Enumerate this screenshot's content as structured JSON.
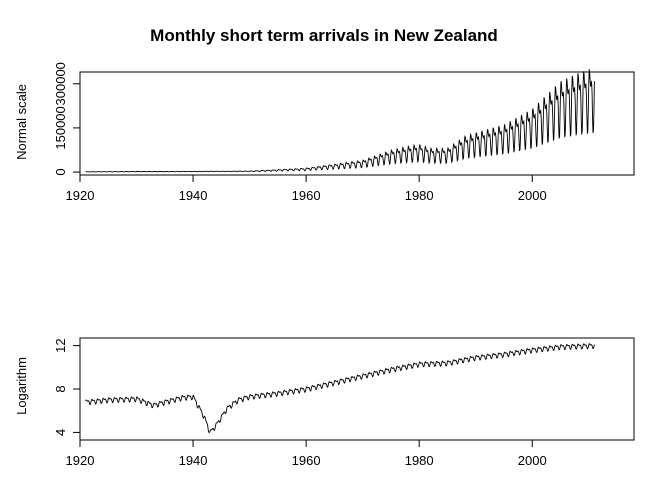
{
  "title": "Monthly short term arrivals in New Zealand",
  "chart_data": [
    {
      "type": "line",
      "panel": "top",
      "ylabel": "Normal scale",
      "xlim": [
        1920,
        2018
      ],
      "ylim": [
        -10000,
        340000
      ],
      "xticks": [
        1920,
        1940,
        1960,
        1980,
        2000
      ],
      "yticks": [
        0,
        150000,
        300000
      ],
      "ytick_labels": [
        "0",
        "150000",
        "300000"
      ],
      "series": [
        {
          "color": "#000000",
          "trend": {
            "x": [
              1921,
              1930,
              1940,
              1950,
              1960,
              1965,
              1970,
              1975,
              1978,
              1980,
              1982,
              1985,
              1988,
              1990,
              1995,
              2000,
              2005,
              2008,
              2011
            ],
            "y": [
              800,
              1500,
              2000,
              2500,
              10000,
              20000,
              30000,
              55000,
              65000,
              70000,
              60000,
              60000,
              90000,
              100000,
              120000,
              160000,
              230000,
              250000,
              265000
            ]
          },
          "seasonal_amplitude_fraction": 0.55
        }
      ]
    },
    {
      "type": "line",
      "panel": "bottom",
      "ylabel": "Logarithm",
      "xlim": [
        1920,
        2018
      ],
      "ylim": [
        3.3,
        12.7
      ],
      "xticks": [
        1920,
        1940,
        1960,
        1980,
        2000
      ],
      "yticks": [
        4,
        8,
        12
      ],
      "ytick_labels": [
        "4",
        "8",
        "12"
      ],
      "series": [
        {
          "color": "#000000",
          "trend": {
            "x": [
              1921,
              1925,
              1930,
              1933,
              1935,
              1938,
              1940,
              1942,
              1943,
              1944,
              1946,
              1948,
              1950,
              1955,
              1960,
              1965,
              1970,
              1975,
              1980,
              1985,
              1990,
              1995,
              2000,
              2005,
              2011
            ],
            "y": [
              6.8,
              7.0,
              7.1,
              6.5,
              6.8,
              7.2,
              7.3,
              5.4,
              4.0,
              4.6,
              6.2,
              7.0,
              7.3,
              7.6,
              8.0,
              8.6,
              9.2,
              9.8,
              10.3,
              10.4,
              10.9,
              11.2,
              11.6,
              11.9,
              12.0
            ]
          },
          "seasonal_amplitude": 0.3
        }
      ]
    }
  ]
}
